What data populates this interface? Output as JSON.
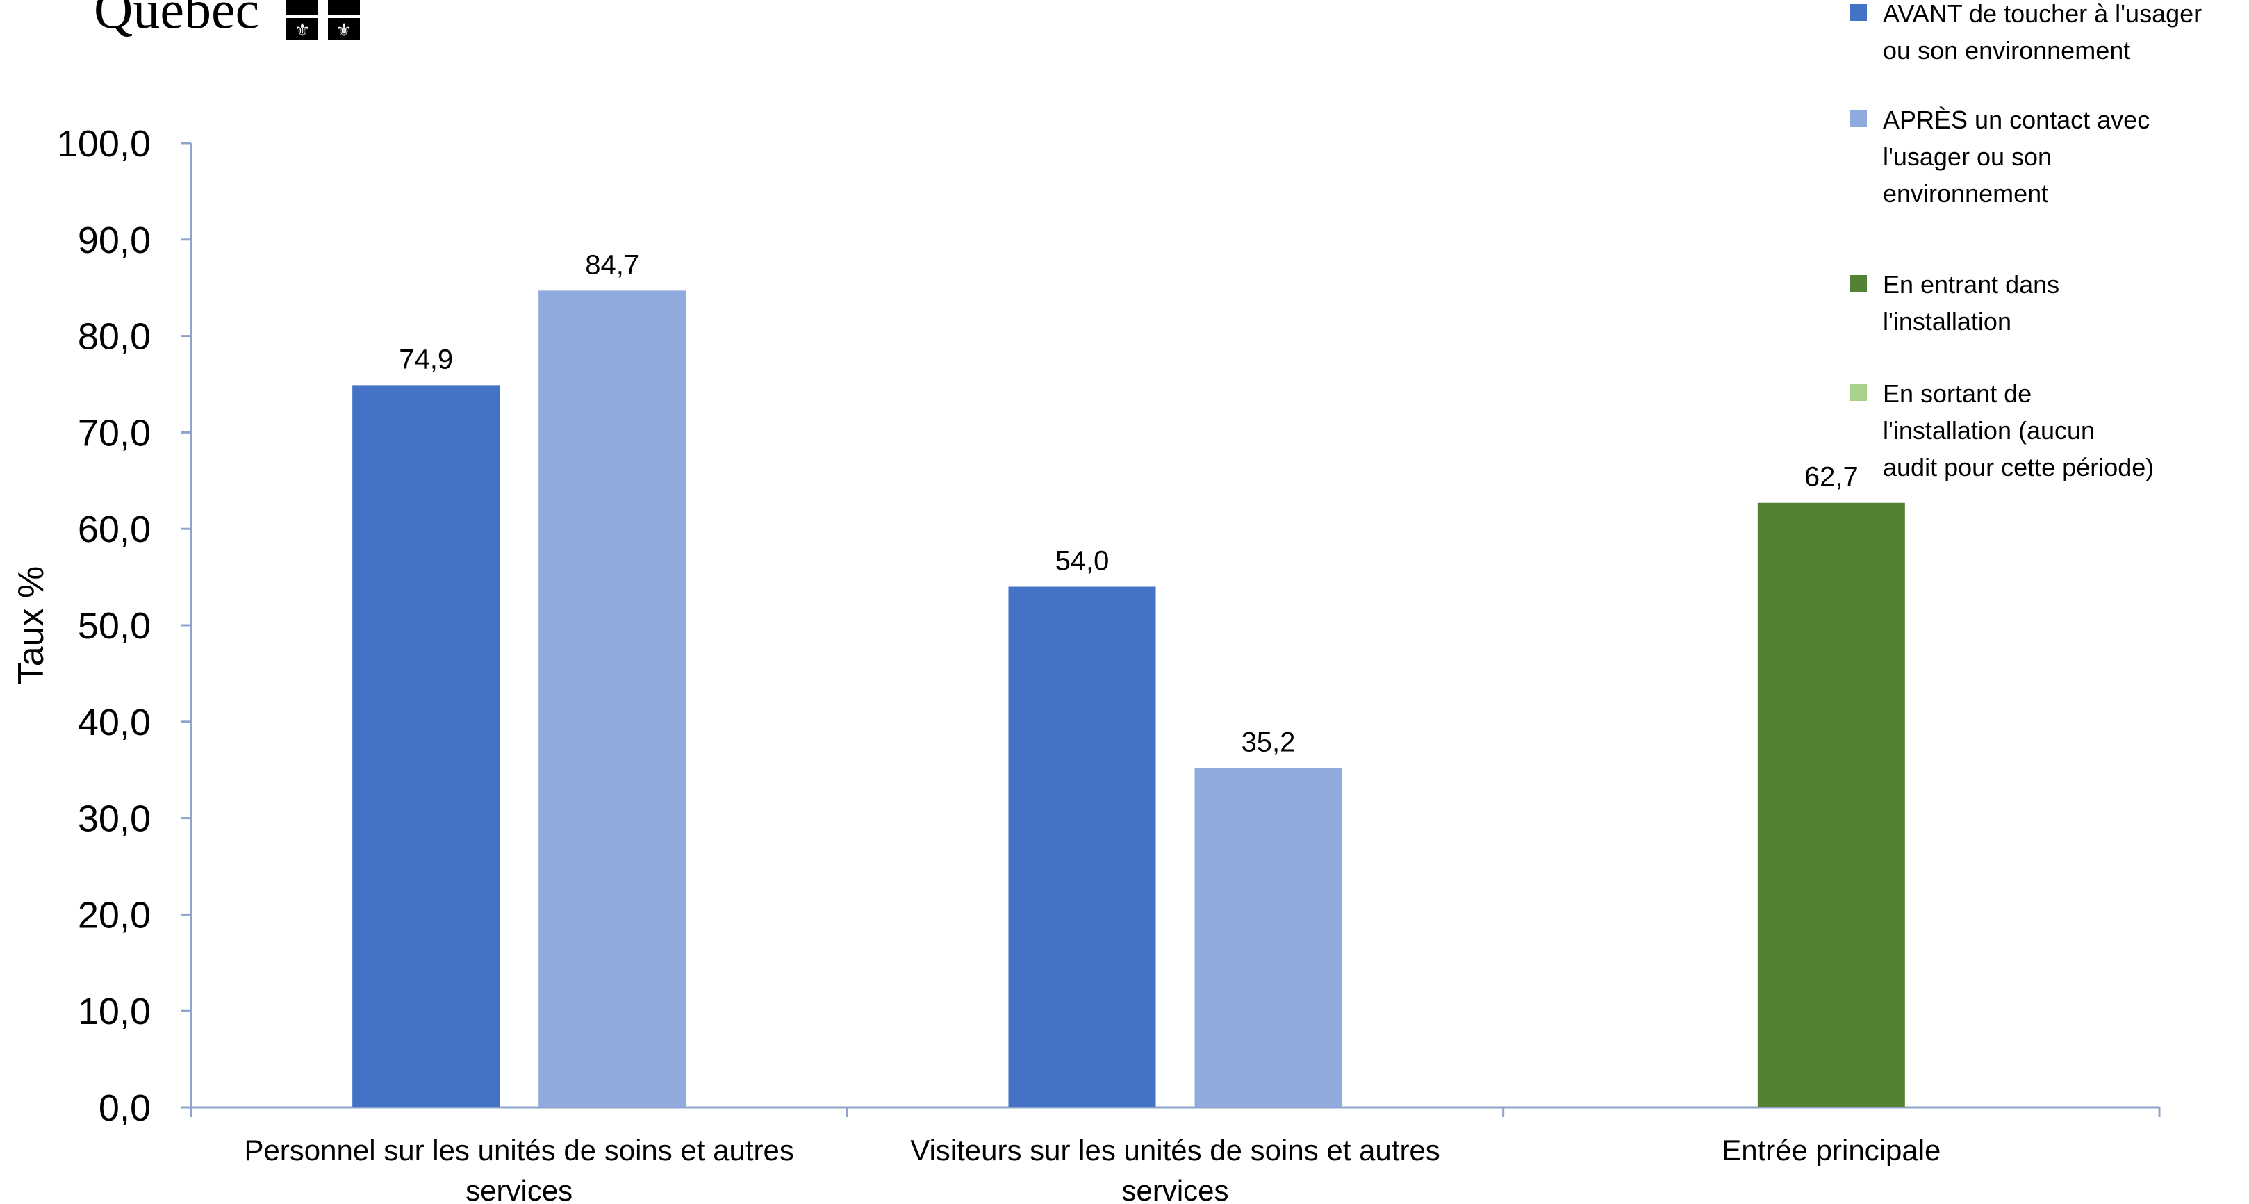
{
  "logo": {
    "text": "Québec"
  },
  "chart_data": {
    "type": "bar",
    "ylabel": "Taux %",
    "ylim": [
      0,
      100
    ],
    "yticks": [
      0,
      10,
      20,
      30,
      40,
      50,
      60,
      70,
      80,
      90,
      100
    ],
    "ytick_labels": [
      "0,0",
      "10,0",
      "20,0",
      "30,0",
      "40,0",
      "50,0",
      "60,0",
      "70,0",
      "80,0",
      "90,0",
      "100,0"
    ],
    "categories": [
      [
        "Personnel sur les unités de soins et autres",
        "services"
      ],
      [
        "Visiteurs sur les unités de soins et autres",
        "services"
      ],
      [
        "Entrée principale"
      ]
    ],
    "series": [
      {
        "name": [
          "AVANT de toucher à l'usager",
          "ou son environnement"
        ],
        "color": "#4472C4",
        "values": [
          74.9,
          54.0,
          null
        ],
        "labels": [
          "74,9",
          "54,0",
          ""
        ]
      },
      {
        "name": [
          "APRÈS un contact avec",
          "l'usager ou son",
          "environnement"
        ],
        "color": "#8FAADC",
        "values": [
          84.7,
          35.2,
          null
        ],
        "labels": [
          "84,7",
          "35,2",
          ""
        ]
      },
      {
        "name": [
          "En entrant dans",
          "l'installation"
        ],
        "color": "#548235",
        "values": [
          null,
          null,
          62.7
        ],
        "labels": [
          "",
          "",
          "62,7"
        ]
      },
      {
        "name": [
          "En sortant de",
          "l'installation (aucun",
          "audit pour cette période)"
        ],
        "color": "#A9D18E",
        "values": [
          null,
          null,
          null
        ],
        "labels": [
          "",
          "",
          ""
        ]
      }
    ],
    "grid": false,
    "legend_position": "top-right"
  }
}
